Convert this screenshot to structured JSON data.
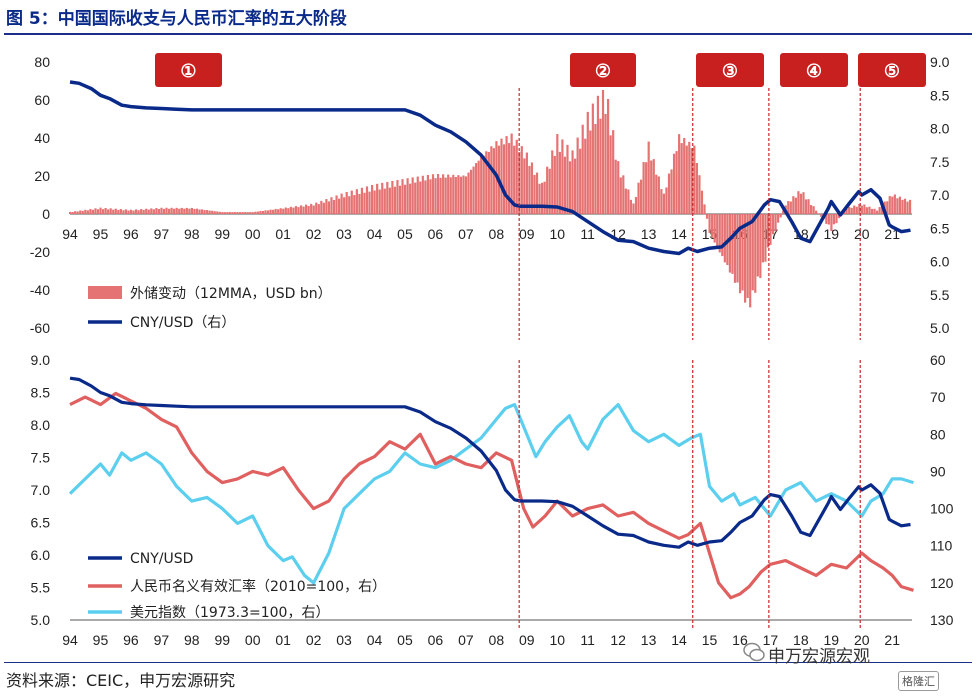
{
  "title": "图 5：中国国际收支与人民币汇率的五大阶段",
  "source": "资料来源：CEIC，申万宏源研究",
  "watermark": "申万宏源宏观",
  "watermark2": "格隆汇",
  "colors": {
    "cny": "#0a2a8a",
    "neer": "#e06060",
    "dxy": "#5ccfee",
    "fx_bar": "#e57373",
    "stage_bg": "#c81f1f",
    "divider": "#c62828"
  },
  "stages": [
    "①",
    "②",
    "③",
    "④",
    "⑤"
  ],
  "stage_dividers": [
    2008.75,
    2014.45,
    2016.95,
    2019.95
  ],
  "x_ticks": [
    "94",
    "95",
    "96",
    "97",
    "98",
    "99",
    "00",
    "01",
    "02",
    "03",
    "04",
    "05",
    "06",
    "07",
    "08",
    "09",
    "10",
    "11",
    "12",
    "13",
    "14",
    "15",
    "16",
    "17",
    "18",
    "19",
    "20",
    "21"
  ],
  "chart_data": [
    {
      "type": "bar+line",
      "ylim_left": [
        -60,
        80
      ],
      "yticks_left": [
        "80",
        "60",
        "40",
        "20",
        "0",
        "-20",
        "-40",
        "-60"
      ],
      "ylim_right": [
        5.0,
        9.0
      ],
      "yticks_right": [
        "9.0",
        "8.5",
        "8.0",
        "7.5",
        "7.0",
        "6.5",
        "6.0",
        "5.5",
        "5.0"
      ],
      "legend": [
        "外储变动（12MMA，USD bn）",
        "CNY/USD（右）"
      ],
      "legend_position": "bottom-left",
      "series": [
        {
          "name": "外储变动（12MMA，USD bn）",
          "axis": "left",
          "kind": "bar",
          "x": [
            1994,
            1995,
            1996,
            1997,
            1998,
            1999,
            2000,
            2001,
            2002,
            2003,
            2004,
            2005,
            2006,
            2007,
            2007.5,
            2008,
            2008.5,
            2009,
            2009.5,
            2010,
            2010.5,
            2011,
            2011.3,
            2011.6,
            2012,
            2012.5,
            2013,
            2013.5,
            2014,
            2014.5,
            2015,
            2015.5,
            2016,
            2016.3,
            2016.7,
            2017,
            2017.5,
            2018,
            2018.5,
            2019,
            2019.5,
            2020,
            2020.5,
            2021,
            2021.5
          ],
          "values": [
            1,
            3,
            2,
            3,
            3,
            1,
            1,
            3,
            5,
            10,
            14,
            17,
            20,
            20,
            30,
            37,
            40,
            30,
            15,
            38,
            30,
            48,
            55,
            60,
            25,
            5,
            35,
            10,
            40,
            35,
            -10,
            -25,
            -40,
            -48,
            -30,
            -15,
            5,
            12,
            2,
            -8,
            3,
            5,
            2,
            10,
            7
          ]
        },
        {
          "name": "CNY/USD（右）",
          "axis": "right",
          "kind": "line",
          "x": [
            1994,
            1994.3,
            1994.7,
            1995,
            1995.3,
            1995.7,
            1996,
            1996.5,
            1997,
            1997.5,
            1998,
            1998.5,
            1999,
            2000,
            2001,
            2002,
            2003,
            2004,
            2005,
            2005.5,
            2006,
            2006.5,
            2007,
            2007.5,
            2008,
            2008.3,
            2008.6,
            2008.8,
            2009,
            2009.5,
            2010,
            2010.5,
            2011,
            2011.5,
            2012,
            2012.5,
            2013,
            2013.5,
            2014,
            2014.3,
            2014.6,
            2015,
            2015.4,
            2015.7,
            2016,
            2016.4,
            2016.8,
            2017,
            2017.3,
            2017.7,
            2018,
            2018.3,
            2018.6,
            2018.9,
            2019,
            2019.3,
            2019.6,
            2019.9,
            2020,
            2020.3,
            2020.6,
            2020.9,
            2021,
            2021.3,
            2021.6
          ],
          "values": [
            8.7,
            8.68,
            8.6,
            8.5,
            8.45,
            8.35,
            8.33,
            8.31,
            8.3,
            8.29,
            8.28,
            8.28,
            8.28,
            8.28,
            8.28,
            8.28,
            8.28,
            8.28,
            8.28,
            8.2,
            8.05,
            7.95,
            7.8,
            7.6,
            7.3,
            7.0,
            6.85,
            6.83,
            6.83,
            6.83,
            6.82,
            6.75,
            6.6,
            6.45,
            6.32,
            6.3,
            6.2,
            6.15,
            6.12,
            6.2,
            6.15,
            6.2,
            6.22,
            6.35,
            6.5,
            6.6,
            6.85,
            6.93,
            6.9,
            6.6,
            6.35,
            6.3,
            6.55,
            6.8,
            6.9,
            6.7,
            6.88,
            7.05,
            7.0,
            7.08,
            6.95,
            6.55,
            6.52,
            6.45,
            6.47
          ]
        }
      ]
    },
    {
      "type": "line",
      "ylim_left": [
        5.0,
        9.0
      ],
      "yticks_left": [
        "9.0",
        "8.5",
        "8.0",
        "7.5",
        "7.0",
        "6.5",
        "6.0",
        "5.5",
        "5.0"
      ],
      "ylim_right": [
        130,
        60
      ],
      "yticks_right": [
        "60",
        "70",
        "80",
        "90",
        "100",
        "110",
        "120",
        "130"
      ],
      "legend": [
        "CNY/USD",
        "人民币名义有效汇率（2010=100，右）",
        "美元指数（1973.3=100，右）"
      ],
      "legend_position": "bottom-left",
      "series": [
        {
          "name": "CNY/USD",
          "axis": "left",
          "x": [
            1994,
            1994.3,
            1994.7,
            1995,
            1995.3,
            1995.7,
            1996,
            1996.5,
            1997,
            1997.5,
            1998,
            1998.5,
            1999,
            2000,
            2001,
            2002,
            2003,
            2004,
            2005,
            2005.5,
            2006,
            2006.5,
            2007,
            2007.5,
            2008,
            2008.3,
            2008.6,
            2008.8,
            2009,
            2009.5,
            2010,
            2010.5,
            2011,
            2011.5,
            2012,
            2012.5,
            2013,
            2013.5,
            2014,
            2014.3,
            2014.6,
            2015,
            2015.4,
            2015.7,
            2016,
            2016.4,
            2016.8,
            2017,
            2017.3,
            2017.7,
            2018,
            2018.3,
            2018.6,
            2018.9,
            2019,
            2019.3,
            2019.6,
            2019.9,
            2020,
            2020.3,
            2020.6,
            2020.9,
            2021,
            2021.3,
            2021.6
          ],
          "values": [
            8.72,
            8.7,
            8.6,
            8.5,
            8.45,
            8.35,
            8.33,
            8.31,
            8.3,
            8.29,
            8.28,
            8.28,
            8.28,
            8.28,
            8.28,
            8.28,
            8.28,
            8.28,
            8.28,
            8.2,
            8.05,
            7.95,
            7.8,
            7.6,
            7.3,
            7.0,
            6.85,
            6.83,
            6.83,
            6.83,
            6.82,
            6.75,
            6.6,
            6.45,
            6.32,
            6.3,
            6.2,
            6.15,
            6.12,
            6.2,
            6.15,
            6.2,
            6.22,
            6.35,
            6.5,
            6.6,
            6.85,
            6.93,
            6.9,
            6.6,
            6.35,
            6.3,
            6.55,
            6.8,
            6.9,
            6.7,
            6.88,
            7.05,
            7.0,
            7.08,
            6.95,
            6.55,
            6.52,
            6.45,
            6.47
          ]
        },
        {
          "name": "人民币名义有效汇率（2010=100，右）",
          "axis": "right",
          "x": [
            1994,
            1994.5,
            1995,
            1995.5,
            1996,
            1996.5,
            1997,
            1997.5,
            1998,
            1998.5,
            1999,
            1999.5,
            2000,
            2000.5,
            2001,
            2001.5,
            2002,
            2002.5,
            2003,
            2003.5,
            2004,
            2004.5,
            2005,
            2005.5,
            2006,
            2006.5,
            2007,
            2007.5,
            2008,
            2008.5,
            2008.9,
            2009.2,
            2009.6,
            2010,
            2010.5,
            2011,
            2011.5,
            2012,
            2012.5,
            2013,
            2013.5,
            2014,
            2014.3,
            2014.7,
            2015,
            2015.3,
            2015.7,
            2016,
            2016.3,
            2016.7,
            2017,
            2017.5,
            2018,
            2018.5,
            2019,
            2019.5,
            2020,
            2020.3,
            2020.7,
            2021,
            2021.3,
            2021.7
          ],
          "values": [
            72,
            70,
            72,
            69,
            71,
            73,
            76,
            78,
            85,
            90,
            93,
            92,
            90,
            91,
            89,
            95,
            100,
            98,
            92,
            88,
            86,
            82,
            84,
            80,
            88,
            86,
            88,
            89,
            85,
            87,
            100,
            105,
            102,
            98,
            102,
            100,
            99,
            102,
            101,
            104,
            106,
            108,
            107,
            104,
            112,
            120,
            124,
            123,
            121,
            117,
            115,
            114,
            116,
            118,
            115,
            116,
            112,
            114,
            116,
            118,
            121,
            122
          ]
        },
        {
          "name": "美元指数（1973.3=100，右）",
          "axis": "right",
          "x": [
            1994,
            1994.5,
            1995,
            1995.3,
            1995.7,
            1996,
            1996.5,
            1997,
            1997.5,
            1998,
            1998.5,
            1999,
            1999.5,
            2000,
            2000.5,
            2001,
            2001.3,
            2001.7,
            2002,
            2002.5,
            2003,
            2003.5,
            2004,
            2004.5,
            2005,
            2005.5,
            2006,
            2006.5,
            2007,
            2007.5,
            2008,
            2008.3,
            2008.6,
            2009,
            2009.3,
            2009.6,
            2010,
            2010.4,
            2010.8,
            2011,
            2011.5,
            2012,
            2012.5,
            2013,
            2013.5,
            2014,
            2014.4,
            2014.7,
            2015,
            2015.4,
            2015.8,
            2016,
            2016.5,
            2017,
            2017.5,
            2018,
            2018.5,
            2019,
            2019.5,
            2020,
            2020.3,
            2020.7,
            2021,
            2021.3,
            2021.7
          ],
          "values": [
            96,
            92,
            88,
            91,
            85,
            87,
            85,
            88,
            94,
            98,
            97,
            100,
            104,
            102,
            110,
            114,
            113,
            118,
            120,
            112,
            100,
            96,
            92,
            90,
            85,
            88,
            89,
            87,
            84,
            81,
            76,
            73,
            72,
            80,
            86,
            82,
            78,
            75,
            82,
            84,
            76,
            72,
            79,
            82,
            80,
            83,
            81,
            80,
            94,
            98,
            96,
            99,
            97,
            102,
            95,
            93,
            98,
            96,
            98,
            102,
            98,
            96,
            92,
            92,
            93
          ]
        }
      ]
    }
  ]
}
